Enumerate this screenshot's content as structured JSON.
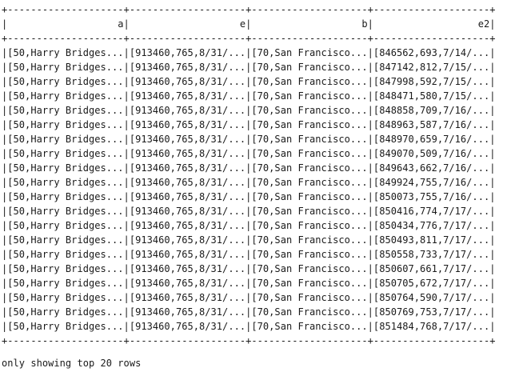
{
  "output": {
    "border": "+--------------------+--------------------+--------------------+--------------------+",
    "header": "|                   a|                   e|                   b|                  e2|",
    "rows": [
      "|[50,Harry Bridges...|[913460,765,8/31/...|[70,San Francisco...|[846562,693,7/14/...|",
      "|[50,Harry Bridges...|[913460,765,8/31/...|[70,San Francisco...|[847142,812,7/15/...|",
      "|[50,Harry Bridges...|[913460,765,8/31/...|[70,San Francisco...|[847998,592,7/15/...|",
      "|[50,Harry Bridges...|[913460,765,8/31/...|[70,San Francisco...|[848471,580,7/15/...|",
      "|[50,Harry Bridges...|[913460,765,8/31/...|[70,San Francisco...|[848858,709,7/16/...|",
      "|[50,Harry Bridges...|[913460,765,8/31/...|[70,San Francisco...|[848963,587,7/16/...|",
      "|[50,Harry Bridges...|[913460,765,8/31/...|[70,San Francisco...|[848970,659,7/16/...|",
      "|[50,Harry Bridges...|[913460,765,8/31/...|[70,San Francisco...|[849070,509,7/16/...|",
      "|[50,Harry Bridges...|[913460,765,8/31/...|[70,San Francisco...|[849643,662,7/16/...|",
      "|[50,Harry Bridges...|[913460,765,8/31/...|[70,San Francisco...|[849924,755,7/16/...|",
      "|[50,Harry Bridges...|[913460,765,8/31/...|[70,San Francisco...|[850073,755,7/16/...|",
      "|[50,Harry Bridges...|[913460,765,8/31/...|[70,San Francisco...|[850416,774,7/17/...|",
      "|[50,Harry Bridges...|[913460,765,8/31/...|[70,San Francisco...|[850434,776,7/17/...|",
      "|[50,Harry Bridges...|[913460,765,8/31/...|[70,San Francisco...|[850493,811,7/17/...|",
      "|[50,Harry Bridges...|[913460,765,8/31/...|[70,San Francisco...|[850558,733,7/17/...|",
      "|[50,Harry Bridges...|[913460,765,8/31/...|[70,San Francisco...|[850607,661,7/17/...|",
      "|[50,Harry Bridges...|[913460,765,8/31/...|[70,San Francisco...|[850705,672,7/17/...|",
      "|[50,Harry Bridges...|[913460,765,8/31/...|[70,San Francisco...|[850764,590,7/17/...|",
      "|[50,Harry Bridges...|[913460,765,8/31/...|[70,San Francisco...|[850769,753,7/17/...|",
      "|[50,Harry Bridges...|[913460,765,8/31/...|[70,San Francisco...|[851484,768,7/17/...|"
    ],
    "footer": "only showing top 20 rows"
  }
}
